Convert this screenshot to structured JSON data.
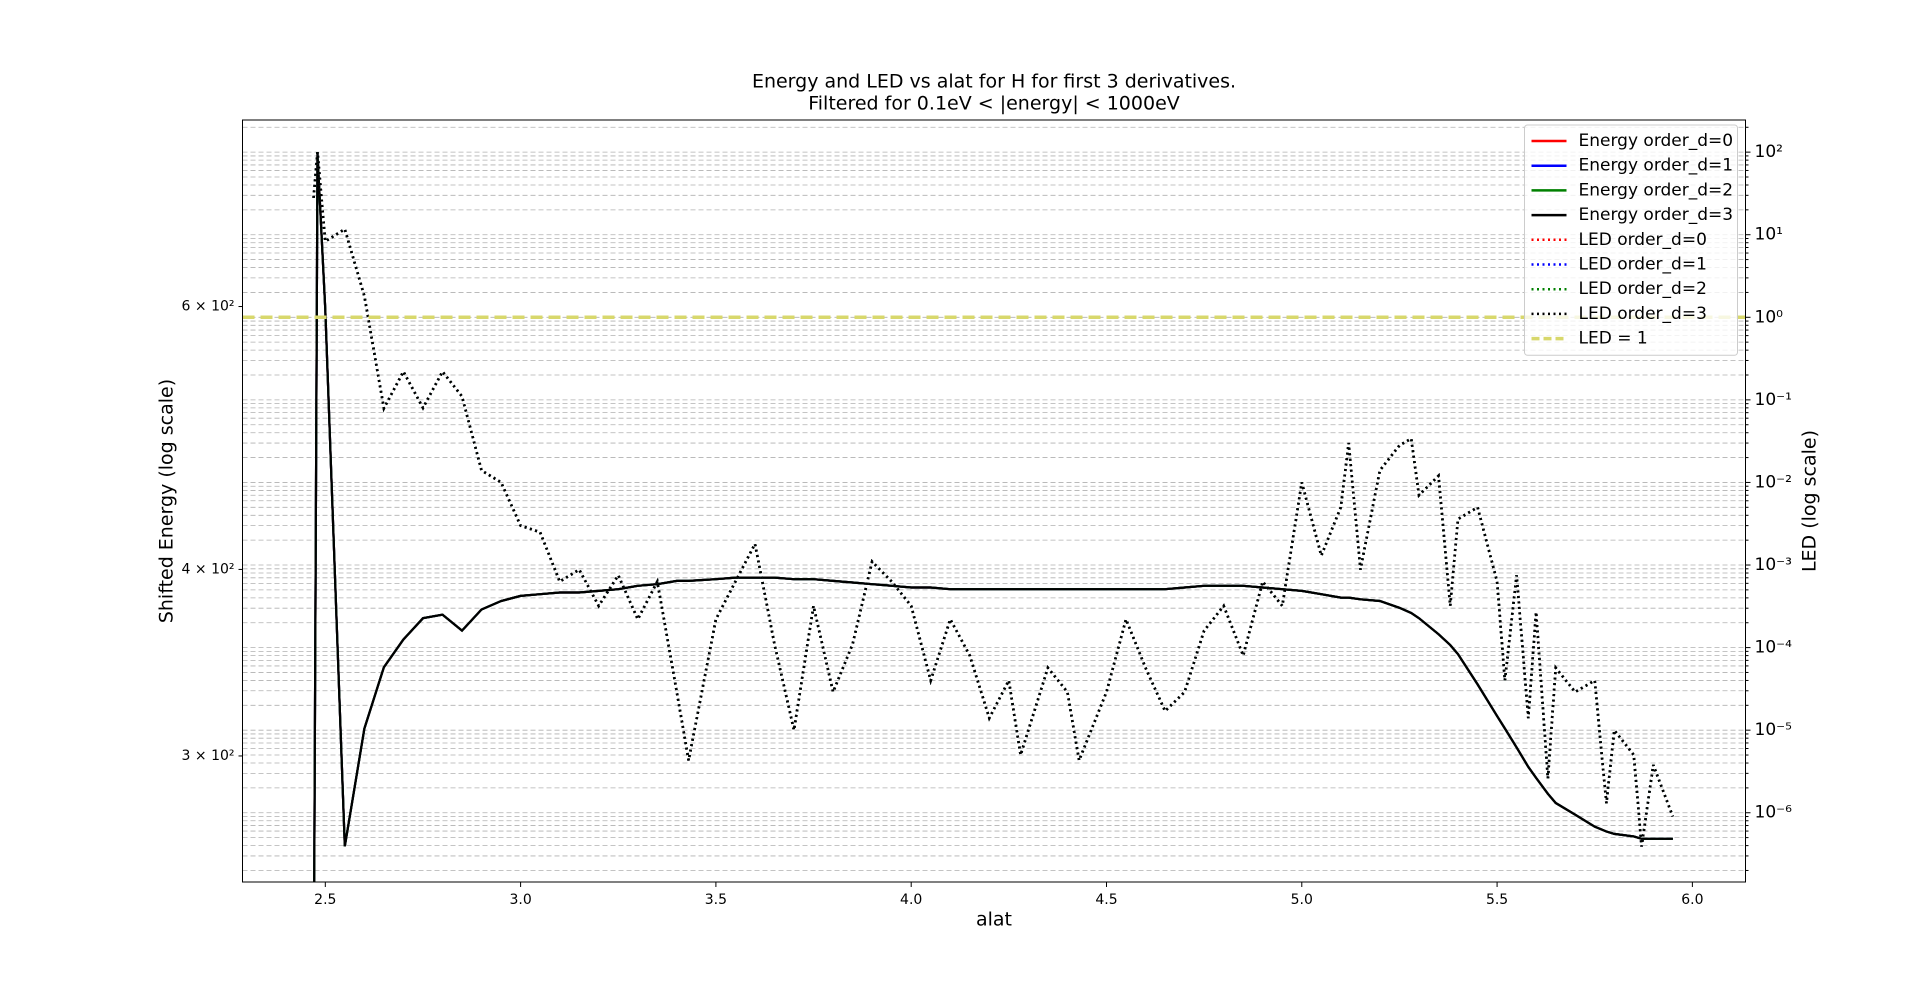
{
  "chart_data": {
    "type": "line",
    "title": "Energy and LED vs alat for H for first 3 derivatives.",
    "subtitle": "Filtered for 0.1eV < |energy| < 1000eV",
    "xlabel": "alat",
    "ylabel": "Shifted Energy (log scale)",
    "y2label": "LED (log scale)",
    "x": [
      2.47,
      2.48,
      2.5,
      2.55,
      2.6,
      2.65,
      2.7,
      2.75,
      2.8,
      2.85,
      2.9,
      2.95,
      3.0,
      3.05,
      3.1,
      3.15,
      3.2,
      3.25,
      3.3,
      3.35,
      3.4,
      3.43,
      3.5,
      3.55,
      3.6,
      3.65,
      3.7,
      3.75,
      3.8,
      3.85,
      3.9,
      3.95,
      4.0,
      4.05,
      4.1,
      4.15,
      4.2,
      4.25,
      4.28,
      4.35,
      4.4,
      4.43,
      4.5,
      4.55,
      4.6,
      4.65,
      4.7,
      4.75,
      4.8,
      4.85,
      4.9,
      4.95,
      5.0,
      5.05,
      5.1,
      5.12,
      5.15,
      5.2,
      5.25,
      5.28,
      5.3,
      5.35,
      5.38,
      5.4,
      5.45,
      5.5,
      5.52,
      5.55,
      5.58,
      5.6,
      5.63,
      5.65,
      5.7,
      5.75,
      5.78,
      5.8,
      5.85,
      5.87,
      5.9,
      5.95
    ],
    "series": [
      {
        "name": "Energy order_d=0",
        "color": "#ff0000",
        "style": "solid",
        "axis": "y",
        "values": [
          200,
          759,
          597,
          261,
          313,
          344,
          359,
          371,
          373,
          364,
          376,
          381,
          384,
          385,
          386,
          386,
          387,
          388,
          390,
          391,
          393,
          393,
          394,
          395,
          395,
          395,
          394,
          394,
          393,
          392,
          391,
          390,
          389,
          389,
          388,
          388,
          388,
          388,
          388,
          388,
          388,
          388,
          388,
          388,
          388,
          388,
          389,
          390,
          390,
          390,
          389,
          388,
          387,
          385,
          383,
          383,
          382,
          381,
          377,
          374,
          371,
          362,
          356,
          351,
          335,
          319,
          313,
          304,
          295,
          290,
          283,
          279,
          274,
          269,
          267,
          266,
          265,
          264,
          264,
          264
        ]
      },
      {
        "name": "Energy order_d=1",
        "color": "#0000ff",
        "style": "solid",
        "axis": "y",
        "values": [
          200,
          759,
          597,
          261,
          313,
          344,
          359,
          371,
          373,
          364,
          376,
          381,
          384,
          385,
          386,
          386,
          387,
          388,
          390,
          391,
          393,
          393,
          394,
          395,
          395,
          395,
          394,
          394,
          393,
          392,
          391,
          390,
          389,
          389,
          388,
          388,
          388,
          388,
          388,
          388,
          388,
          388,
          388,
          388,
          388,
          388,
          389,
          390,
          390,
          390,
          389,
          388,
          387,
          385,
          383,
          383,
          382,
          381,
          377,
          374,
          371,
          362,
          356,
          351,
          335,
          319,
          313,
          304,
          295,
          290,
          283,
          279,
          274,
          269,
          267,
          266,
          265,
          264,
          264,
          264
        ]
      },
      {
        "name": "Energy order_d=2",
        "color": "#008000",
        "style": "solid",
        "axis": "y",
        "values": [
          200,
          759,
          597,
          261,
          313,
          344,
          359,
          371,
          373,
          364,
          376,
          381,
          384,
          385,
          386,
          386,
          387,
          388,
          390,
          391,
          393,
          393,
          394,
          395,
          395,
          395,
          394,
          394,
          393,
          392,
          391,
          390,
          389,
          389,
          388,
          388,
          388,
          388,
          388,
          388,
          388,
          388,
          388,
          388,
          388,
          388,
          389,
          390,
          390,
          390,
          389,
          388,
          387,
          385,
          383,
          383,
          382,
          381,
          377,
          374,
          371,
          362,
          356,
          351,
          335,
          319,
          313,
          304,
          295,
          290,
          283,
          279,
          274,
          269,
          267,
          266,
          265,
          264,
          264,
          264
        ]
      },
      {
        "name": "Energy order_d=3",
        "color": "#000000",
        "style": "solid",
        "axis": "y",
        "values": [
          200,
          759,
          597,
          261,
          313,
          344,
          359,
          371,
          373,
          364,
          376,
          381,
          384,
          385,
          386,
          386,
          387,
          388,
          390,
          391,
          393,
          393,
          394,
          395,
          395,
          395,
          394,
          394,
          393,
          392,
          391,
          390,
          389,
          389,
          388,
          388,
          388,
          388,
          388,
          388,
          388,
          388,
          388,
          388,
          388,
          388,
          389,
          390,
          390,
          390,
          389,
          388,
          387,
          385,
          383,
          383,
          382,
          381,
          377,
          374,
          371,
          362,
          356,
          351,
          335,
          319,
          313,
          304,
          295,
          290,
          283,
          279,
          274,
          269,
          267,
          266,
          265,
          264,
          264,
          264
        ]
      },
      {
        "name": "LED order_d=0",
        "color": "#ff0000",
        "style": "dotted",
        "axis": "y2",
        "values": [
          28,
          100,
          8.3,
          11.7,
          1.8,
          0.079,
          0.22,
          0.08,
          0.22,
          0.11,
          0.014,
          0.01,
          0.003,
          0.0025,
          0.00063,
          0.00088,
          0.00032,
          0.00075,
          0.00022,
          0.00063,
          2.9e-05,
          4.3e-06,
          0.00022,
          0.00063,
          0.0018,
          0.00011,
          1e-05,
          0.00032,
          2.9e-05,
          0.00011,
          0.0011,
          0.00063,
          0.00032,
          4e-05,
          0.00022,
          8e-05,
          1.4e-05,
          4e-05,
          5e-06,
          5.7e-05,
          2.9e-05,
          4.3e-06,
          2.9e-05,
          0.00022,
          5.7e-05,
          1.7e-05,
          2.9e-05,
          0.00016,
          0.00032,
          8e-05,
          0.00063,
          0.00032,
          0.01,
          0.0013,
          0.005,
          0.03,
          0.00088,
          0.014,
          0.028,
          0.034,
          0.007,
          0.012,
          0.00032,
          0.0036,
          0.005,
          0.00063,
          4e-05,
          0.00075,
          1.4e-05,
          0.00027,
          2.6e-06,
          5.7e-05,
          2.9e-05,
          4e-05,
          1.3e-06,
          1e-05,
          5e-06,
          3.9e-07,
          3.8e-06,
          9e-07
        ]
      },
      {
        "name": "LED order_d=1",
        "color": "#0000ff",
        "style": "dotted",
        "axis": "y2",
        "values": [
          28,
          100,
          8.3,
          11.7,
          1.8,
          0.079,
          0.22,
          0.08,
          0.22,
          0.11,
          0.014,
          0.01,
          0.003,
          0.0025,
          0.00063,
          0.00088,
          0.00032,
          0.00075,
          0.00022,
          0.00063,
          2.9e-05,
          4.3e-06,
          0.00022,
          0.00063,
          0.0018,
          0.00011,
          1e-05,
          0.00032,
          2.9e-05,
          0.00011,
          0.0011,
          0.00063,
          0.00032,
          4e-05,
          0.00022,
          8e-05,
          1.4e-05,
          4e-05,
          5e-06,
          5.7e-05,
          2.9e-05,
          4.3e-06,
          2.9e-05,
          0.00022,
          5.7e-05,
          1.7e-05,
          2.9e-05,
          0.00016,
          0.00032,
          8e-05,
          0.00063,
          0.00032,
          0.01,
          0.0013,
          0.005,
          0.03,
          0.00088,
          0.014,
          0.028,
          0.034,
          0.007,
          0.012,
          0.00032,
          0.0036,
          0.005,
          0.00063,
          4e-05,
          0.00075,
          1.4e-05,
          0.00027,
          2.6e-06,
          5.7e-05,
          2.9e-05,
          4e-05,
          1.3e-06,
          1e-05,
          5e-06,
          3.9e-07,
          3.8e-06,
          9e-07
        ]
      },
      {
        "name": "LED order_d=2",
        "color": "#008000",
        "style": "dotted",
        "axis": "y2",
        "values": [
          28,
          100,
          8.3,
          11.7,
          1.8,
          0.079,
          0.22,
          0.08,
          0.22,
          0.11,
          0.014,
          0.01,
          0.003,
          0.0025,
          0.00063,
          0.00088,
          0.00032,
          0.00075,
          0.00022,
          0.00063,
          2.9e-05,
          4.3e-06,
          0.00022,
          0.00063,
          0.0018,
          0.00011,
          1e-05,
          0.00032,
          2.9e-05,
          0.00011,
          0.0011,
          0.00063,
          0.00032,
          4e-05,
          0.00022,
          8e-05,
          1.4e-05,
          4e-05,
          5e-06,
          5.7e-05,
          2.9e-05,
          4.3e-06,
          2.9e-05,
          0.00022,
          5.7e-05,
          1.7e-05,
          2.9e-05,
          0.00016,
          0.00032,
          8e-05,
          0.00063,
          0.00032,
          0.01,
          0.0013,
          0.005,
          0.03,
          0.00088,
          0.014,
          0.028,
          0.034,
          0.007,
          0.012,
          0.00032,
          0.0036,
          0.005,
          0.00063,
          4e-05,
          0.00075,
          1.4e-05,
          0.00027,
          2.6e-06,
          5.7e-05,
          2.9e-05,
          4e-05,
          1.3e-06,
          1e-05,
          5e-06,
          3.9e-07,
          3.8e-06,
          9e-07
        ]
      },
      {
        "name": "LED order_d=3",
        "color": "#000000",
        "style": "dotted",
        "axis": "y2",
        "values": [
          28,
          100,
          8.3,
          11.7,
          1.8,
          0.079,
          0.22,
          0.08,
          0.22,
          0.11,
          0.014,
          0.01,
          0.003,
          0.0025,
          0.00063,
          0.00088,
          0.00032,
          0.00075,
          0.00022,
          0.00063,
          2.9e-05,
          4.3e-06,
          0.00022,
          0.00063,
          0.0018,
          0.00011,
          1e-05,
          0.00032,
          2.9e-05,
          0.00011,
          0.0011,
          0.00063,
          0.00032,
          4e-05,
          0.00022,
          8e-05,
          1.4e-05,
          4e-05,
          5e-06,
          5.7e-05,
          2.9e-05,
          4.3e-06,
          2.9e-05,
          0.00022,
          5.7e-05,
          1.7e-05,
          2.9e-05,
          0.00016,
          0.00032,
          8e-05,
          0.00063,
          0.00032,
          0.01,
          0.0013,
          0.005,
          0.03,
          0.00088,
          0.014,
          0.028,
          0.034,
          0.007,
          0.012,
          0.00032,
          0.0036,
          0.005,
          0.00063,
          4e-05,
          0.00075,
          1.4e-05,
          0.00027,
          2.6e-06,
          5.7e-05,
          2.9e-05,
          4e-05,
          1.3e-06,
          1e-05,
          5e-06,
          3.9e-07,
          3.8e-06,
          9e-07
        ]
      },
      {
        "name": "LED = 1",
        "color": "#d8d86c",
        "style": "dashed",
        "axis": "y2",
        "hline": 1
      }
    ],
    "xlim": [
      2.288,
      6.136
    ],
    "xticks": [
      2.5,
      {
        "value": 3,
        "label": "3.0"
      },
      3.5,
      {
        "value": 4,
        "label": "4.0"
      },
      4.5,
      {
        "value": 5,
        "label": "5.0"
      },
      5.5,
      {
        "value": 6,
        "label": "6.0"
      }
    ],
    "ylim": [
      247,
      800
    ],
    "ylog": true,
    "yticks": [
      {
        "value": 300,
        "label": "3 × 10²"
      },
      {
        "value": 400,
        "label": "4 × 10²"
      },
      {
        "value": 600,
        "label": "6 × 10²"
      }
    ],
    "y2lim": [
      1.45e-07,
      245
    ],
    "y2log": true,
    "y2ticks": [
      {
        "value": 1e-06,
        "label": "10⁻⁶"
      },
      {
        "value": 1e-05,
        "label": "10⁻⁵"
      },
      {
        "value": 0.0001,
        "label": "10⁻⁴"
      },
      {
        "value": 0.001,
        "label": "10⁻³"
      },
      {
        "value": 0.01,
        "label": "10⁻²"
      },
      {
        "value": 0.1,
        "label": "10⁻¹"
      },
      {
        "value": 1,
        "label": "10⁰"
      },
      {
        "value": 10,
        "label": "10¹"
      },
      {
        "value": 100,
        "label": "10²"
      }
    ],
    "y2minorticks": [
      2e-07,
      3e-07,
      4e-07,
      5e-07,
      6e-07,
      7e-07,
      8e-07,
      9e-07,
      2e-06,
      3e-06,
      4e-06,
      5e-06,
      6e-06,
      7e-06,
      8e-06,
      9e-06,
      2e-05,
      3e-05,
      4e-05,
      5e-05,
      6e-05,
      7e-05,
      8e-05,
      9e-05,
      0.0002,
      0.0003,
      0.0004,
      0.0005,
      0.0006,
      0.0007,
      0.0008,
      0.0009,
      0.002,
      0.003,
      0.004,
      0.005,
      0.006,
      0.007,
      0.008,
      0.009,
      0.02,
      0.03,
      0.04,
      0.05,
      0.06,
      0.07,
      0.08,
      0.09,
      0.2,
      0.3,
      0.4,
      0.5,
      0.6,
      0.7,
      0.8,
      0.9,
      2,
      3,
      4,
      5,
      6,
      7,
      8,
      9,
      20,
      30,
      40,
      50,
      60,
      70,
      80,
      90,
      200
    ],
    "grid": true,
    "legend": "upper right"
  }
}
